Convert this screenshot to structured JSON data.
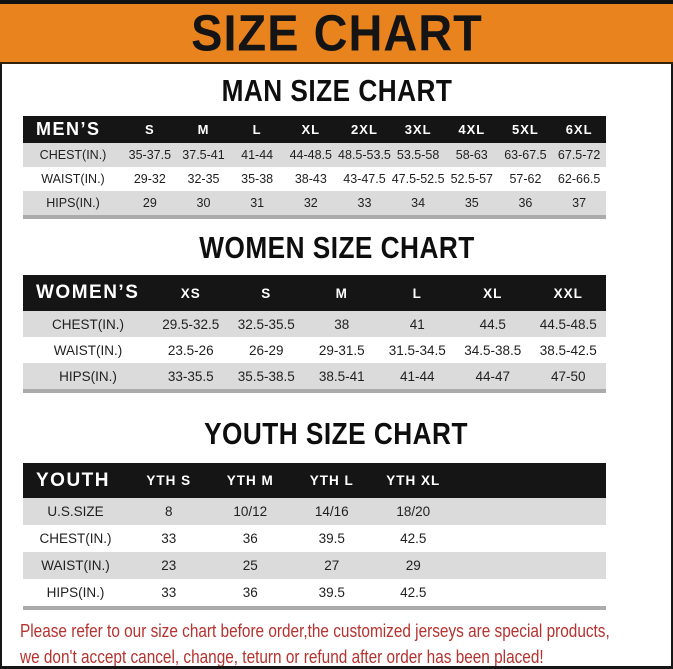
{
  "page": {
    "banner_title": "SIZE CHART",
    "note_line1": "Please refer to our size chart before order,the customized jerseys are special products,",
    "note_line2": "we don't accept cancel, change, teturn or refund after order has been placed!",
    "colors": {
      "banner_bg": "#E9831E",
      "banner_top_strip": "#121212",
      "table_header_bg": "#151515",
      "row_alt_gray": "#DBDBDB",
      "note_red": "#B5322F"
    }
  },
  "tables": [
    {
      "title": "MAN SIZE CHART",
      "header": [
        "MEN’S",
        "S",
        "M",
        "L",
        "XL",
        "2XL",
        "3XL",
        "4XL",
        "5XL",
        "6XL"
      ],
      "rows": [
        [
          "CHEST(IN.)",
          "35-37.5",
          "37.5-41",
          "41-44",
          "44-48.5",
          "48.5-53.5",
          "53.5-58",
          "58-63",
          "63-67.5",
          "67.5-72"
        ],
        [
          "WAIST(IN.)",
          "29-32",
          "32-35",
          "35-38",
          "38-43",
          "43-47.5",
          "47.5-52.5",
          "52.5-57",
          "57-62",
          "62-66.5"
        ],
        [
          "HIPS(IN.)",
          "29",
          "30",
          "31",
          "32",
          "33",
          "34",
          "35",
          "36",
          "37"
        ]
      ]
    },
    {
      "title": "WOMEN SIZE CHART",
      "header": [
        "WOMEN’S",
        "XS",
        "S",
        "M",
        "L",
        "XL",
        "XXL"
      ],
      "rows": [
        [
          "CHEST(IN.)",
          "29.5-32.5",
          "32.5-35.5",
          "38",
          "41",
          "44.5",
          "44.5-48.5"
        ],
        [
          "WAIST(IN.)",
          "23.5-26",
          "26-29",
          "29-31.5",
          "31.5-34.5",
          "34.5-38.5",
          "38.5-42.5"
        ],
        [
          "HIPS(IN.)",
          "33-35.5",
          "35.5-38.5",
          "38.5-41",
          "41-44",
          "44-47",
          "47-50"
        ]
      ]
    },
    {
      "title": "YOUTH SIZE CHART",
      "header": [
        "YOUTH",
        "YTH S",
        "YTH M",
        "YTH L",
        "YTH XL"
      ],
      "rows": [
        [
          "U.S.SIZE",
          "8",
          "10/12",
          "14/16",
          "18/20"
        ],
        [
          "CHEST(IN.)",
          "33",
          "36",
          "39.5",
          "42.5"
        ],
        [
          "WAIST(IN.)",
          "23",
          "25",
          "27",
          "29"
        ],
        [
          "HIPS(IN.)",
          "33",
          "36",
          "39.5",
          "42.5"
        ]
      ]
    }
  ]
}
